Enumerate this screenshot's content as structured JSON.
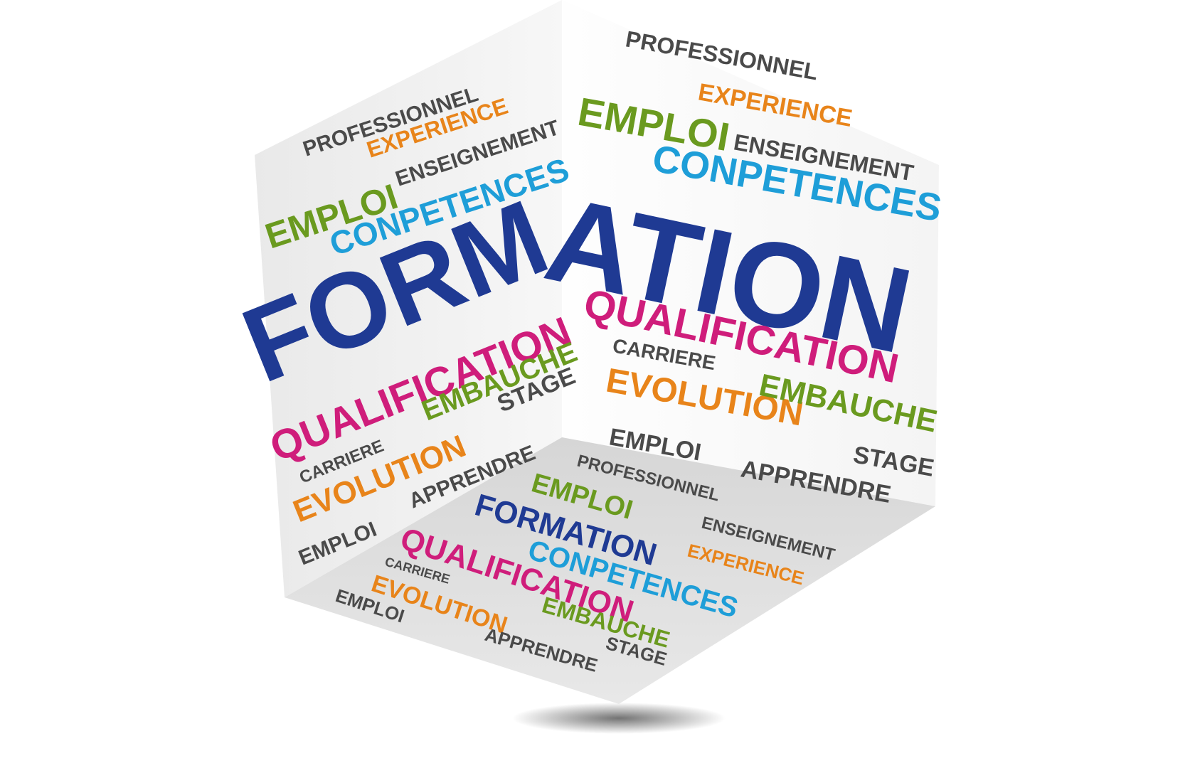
{
  "colors": {
    "dark_blue": "#1f3a93",
    "green": "#6a9a1f",
    "orange": "#e8841a",
    "cyan": "#1e9ed8",
    "magenta": "#cf1d7b",
    "gray": "#4a4a4a",
    "top_face": "#e6e6e6",
    "left_face": "#f0f0f0",
    "right_face": "#ffffff"
  },
  "left_face": {
    "professionnel": "PROFESSIONNEL",
    "experience": "EXPERIENCE",
    "enseignement": "ENSEIGNEMENT",
    "emploi": "EMPLOI",
    "conpetences": "CONPETENCES",
    "formation_part": "FORM",
    "qualification": "QUALIFICATION",
    "embauche": "EMBAUCHE",
    "stage": "STAGE",
    "carriere": "CARRIERE",
    "evolution": "EVOLUTION",
    "apprendre": "APPRENDRE",
    "emploi_bottom": "EMPLOI"
  },
  "right_face": {
    "professionnel": "PROFESSIONNEL",
    "experience": "EXPERIENCE",
    "emploi": "EMPLOI",
    "enseignement": "ENSEIGNEMENT",
    "conpetences": "CONPETENCES",
    "formation_part": "ATION",
    "qualification": "QUALIFICATION",
    "carriere": "CARRIERE",
    "evolution": "EVOLUTION",
    "embauche": "EMBAUCHE",
    "emploi_bottom": "EMPLOI",
    "stage": "STAGE",
    "apprendre": "APPRENDRE"
  },
  "bottom_face": {
    "professionnel": "PROFESSIONNEL",
    "emploi": "EMPLOI",
    "enseignement": "ENSEIGNEMENT",
    "formation": "FORMATION",
    "experience": "EXPERIENCE",
    "qualification": "QUALIFICATION",
    "conpetences": "CONPETENCES",
    "carriere": "CARRIERE",
    "evolution": "EVOLUTION",
    "embauche": "EMBAUCHE",
    "emploi_bottom": "EMPLOI",
    "apprendre": "APPRENDRE",
    "stage": "STAGE"
  }
}
